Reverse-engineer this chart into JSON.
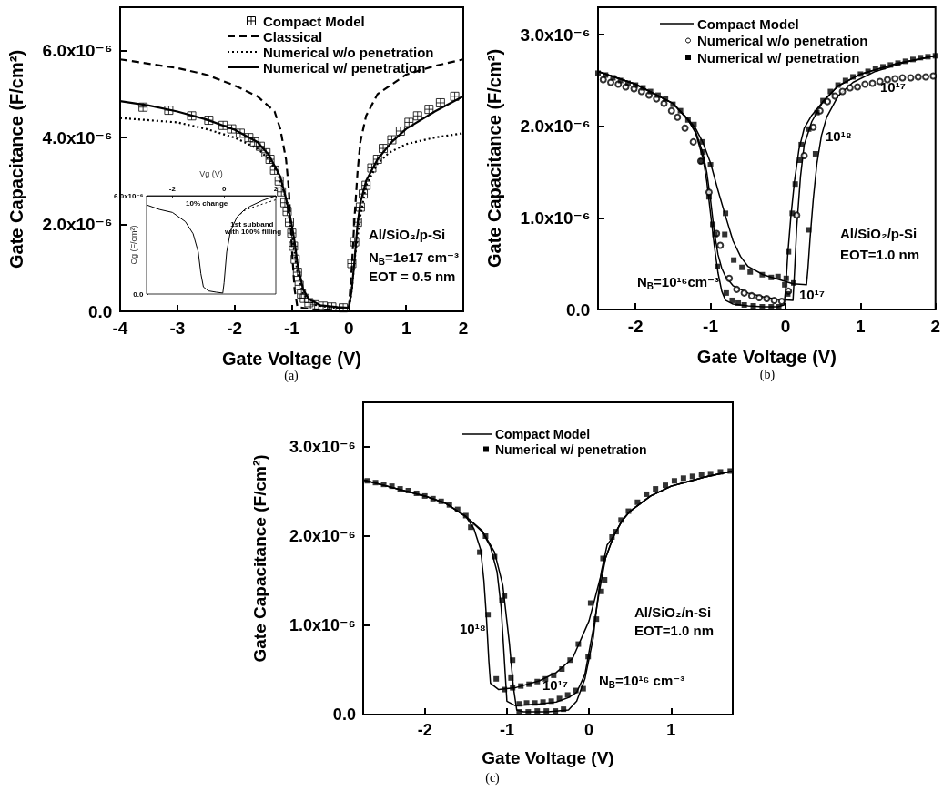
{
  "chart_data": [
    {
      "type": "line",
      "xlabel": "Gate Voltage (V)",
      "ylabel": "Gate Capacitance (F/cm²)",
      "xlim": [
        -4,
        2
      ],
      "xticks": [
        -4,
        -3,
        -2,
        -1,
        0,
        1,
        2
      ],
      "ylim": [
        0,
        7e-06
      ],
      "yticks": [
        {
          "value": 0,
          "label": "0.0"
        },
        {
          "value": 2e-06,
          "label": "2.0x10⁻⁶"
        },
        {
          "value": 4e-06,
          "label": "4.0x10⁻⁶"
        },
        {
          "value": 6e-06,
          "label": "6.0x10⁻⁶"
        }
      ],
      "legend": "top right",
      "annotations": [
        "Al/SiO₂/p-Si",
        "N$_{B}$=1e17 cm⁻³",
        "EOT = 0.5 nm",
        "(a)"
      ],
      "series": [
        {
          "name": "Compact Model",
          "type": "scatter",
          "marker": "cross",
          "color": "#000000",
          "x": [
            -3.6,
            -3.15,
            -2.75,
            -2.45,
            -2.2,
            -2.05,
            -1.9,
            -1.75,
            -1.65,
            -1.55,
            -1.45,
            -1.38,
            -1.3,
            -1.22,
            -1.18,
            -1.12,
            -1.08,
            -1.04,
            -1.0,
            -0.97,
            -0.94,
            -0.9,
            -0.87,
            -0.83,
            -0.78,
            -0.7,
            -0.6,
            -0.45,
            -0.3,
            -0.1,
            0.05,
            0.1,
            0.15,
            0.2,
            0.25,
            0.3,
            0.4,
            0.5,
            0.6,
            0.75,
            0.9,
            1.05,
            1.2,
            1.4,
            1.6,
            1.85
          ],
          "values": [
            4.7e-06,
            4.63e-06,
            4.5e-06,
            4.4e-06,
            4.28e-06,
            4.2e-06,
            4.1e-06,
            4e-06,
            3.9e-06,
            3.8e-06,
            3.65e-06,
            3.5e-06,
            3.25e-06,
            3e-06,
            2.75e-06,
            2.5e-06,
            2.3e-06,
            2.05e-06,
            1.8e-06,
            1.5e-06,
            1.2e-06,
            9e-07,
            6e-07,
            4e-07,
            3e-07,
            2e-07,
            1.5e-07,
            1.2e-07,
            1e-07,
            8e-08,
            1.1e-06,
            1.6e-06,
            2.05e-06,
            2.4e-06,
            2.7e-06,
            2.9e-06,
            3.3e-06,
            3.5e-06,
            3.75e-06,
            3.95e-06,
            4.15e-06,
            4.35e-06,
            4.5e-06,
            4.65e-06,
            4.8e-06,
            4.95e-06
          ]
        },
        {
          "name": "Classical",
          "type": "line",
          "marker": "none",
          "line_style": "dashed",
          "color": "#000000",
          "x": [
            -4,
            -3,
            -2.5,
            -2,
            -1.6,
            -1.3,
            -1.2,
            -1.1,
            -1.05,
            -1.0,
            -0.95,
            -0.9,
            -0.5,
            0,
            0.05,
            0.1,
            0.15,
            0.2,
            0.3,
            0.5,
            1,
            1.5,
            2
          ],
          "values": [
            5.8e-06,
            5.6e-06,
            5.45e-06,
            5.2e-06,
            4.95e-06,
            4.6e-06,
            4.2e-06,
            3.5e-06,
            2.8e-06,
            1.5e-06,
            5e-07,
            1e-07,
            2e-08,
            1e-07,
            1e-06,
            2.2e-06,
            3.2e-06,
            3.9e-06,
            4.5e-06,
            5e-06,
            5.45e-06,
            5.65e-06,
            5.8e-06
          ]
        },
        {
          "name": "Numerical w/o penetration",
          "type": "line",
          "marker": "none",
          "line_style": "dotted",
          "color": "#000000",
          "x": [
            -4,
            -3,
            -2.5,
            -2,
            -1.6,
            -1.4,
            -1.25,
            -1.1,
            -1.0,
            -0.9,
            -0.8,
            -0.6,
            -0.3,
            0,
            0.05,
            0.1,
            0.2,
            0.3,
            0.5,
            0.7,
            1,
            1.5,
            2
          ],
          "values": [
            4.45e-06,
            4.35e-06,
            4.2e-06,
            4e-06,
            3.75e-06,
            3.5e-06,
            3.2e-06,
            2.6e-06,
            1.8e-06,
            9e-07,
            4e-07,
            1.5e-07,
            8e-08,
            6e-08,
            5e-07,
            1.2e-06,
            2.2e-06,
            2.9e-06,
            3.4e-06,
            3.65e-06,
            3.85e-06,
            4e-06,
            4.1e-06
          ]
        },
        {
          "name": "Numerical w/ penetration",
          "type": "line",
          "marker": "none",
          "line_style": "solid",
          "color": "#000000",
          "x": [
            -4,
            -3.5,
            -3,
            -2.5,
            -2,
            -1.6,
            -1.4,
            -1.2,
            -1.1,
            -1.0,
            -0.95,
            -0.9,
            -0.8,
            -0.7,
            -0.5,
            -0.2,
            0,
            0.05,
            0.1,
            0.15,
            0.2,
            0.3,
            0.5,
            0.75,
            1,
            1.5,
            2
          ],
          "values": [
            4.84e-06,
            4.74e-06,
            4.6e-06,
            4.42e-06,
            4.18e-06,
            3.9e-06,
            3.6e-06,
            3.1e-06,
            2.6e-06,
            2e-06,
            1.6e-06,
            1.1e-06,
            5e-07,
            2.8e-07,
            1.4e-07,
            1e-07,
            8e-08,
            5e-07,
            1.2e-06,
            2e-06,
            2.5e-06,
            3e-06,
            3.5e-06,
            3.9e-06,
            4.2e-06,
            4.6e-06,
            4.95e-06
          ]
        }
      ]
    },
    {
      "type": "line",
      "xlabel": "Vg (V)",
      "ylabel": "Cg (F/cm²)",
      "xlim": [
        -3,
        2
      ],
      "xticks": [
        -2,
        0,
        2
      ],
      "ylim": [
        0,
        6e-06
      ],
      "yticks": [
        {
          "value": 0,
          "label": "0.0"
        },
        {
          "value": 6e-06,
          "label": "6.0x10⁻⁶"
        }
      ],
      "annotations": [
        "10% change",
        "1st subband with 100% filling"
      ],
      "series": [
        {
          "type": "line",
          "marker": "none",
          "line_style": "solid",
          "color": "#000000",
          "x": [
            -3,
            -2.5,
            -2,
            -1.5,
            -1.2,
            -1.0,
            -0.9,
            -0.8,
            -0.6,
            -0.3,
            -0.05,
            0,
            0.1,
            0.25,
            0.5,
            0.8,
            1.0,
            1.5,
            2
          ],
          "values": [
            5.44e-06,
            5.16e-06,
            4.98e-06,
            4.42e-06,
            3.68e-06,
            2.56e-06,
            1.26e-06,
            4.3e-07,
            1.9e-07,
            1.1e-07,
            6e-08,
            7e-07,
            2.56e-06,
            3.86e-06,
            4.7e-06,
            5.16e-06,
            5.35e-06,
            5.72e-06,
            6e-06
          ]
        },
        {
          "type": "line",
          "marker": "none",
          "line_style": "dotted",
          "color": "#000000",
          "x": [
            0.5,
            0.8,
            1.2,
            1.6,
            2
          ],
          "values": [
            4.7e-06,
            5.1e-06,
            5.35e-06,
            5.55e-06,
            5.75e-06
          ]
        }
      ]
    },
    {
      "type": "line",
      "xlabel": "Gate Voltage (V)",
      "ylabel": "Gate Capacitance (F/cm²)",
      "xlim": [
        -2.5,
        2
      ],
      "xticks": [
        -2,
        -1,
        0,
        1,
        2
      ],
      "ylim": [
        0,
        3.3e-06
      ],
      "yticks": [
        {
          "value": 0,
          "label": "0.0"
        },
        {
          "value": 1e-06,
          "label": "1.0x10⁻⁶"
        },
        {
          "value": 2e-06,
          "label": "2.0x10⁻⁶"
        },
        {
          "value": 3e-06,
          "label": "3.0x10⁻⁶"
        }
      ],
      "legend": "top",
      "annotations": [
        "Al/SiO₂/p-Si",
        "EOT=1.0 nm",
        "N$_{B}$=10¹⁶cm⁻³",
        "10¹⁷",
        "10¹⁷",
        "10¹⁸",
        "(b)"
      ],
      "series": [
        {
          "name": "Compact Model",
          "type": "line",
          "marker": "none",
          "line_style": "solid",
          "color": "#000000",
          "x": [
            -2.5,
            -2,
            -1.5,
            -1.3,
            -1.2,
            -1.1,
            -1.05,
            -1.0,
            -0.95,
            -0.9,
            -0.85,
            -0.8,
            -0.7,
            -0.5,
            -0.3,
            -0.1,
            -0.02,
            0.0,
            0.03,
            0.07,
            0.12,
            0.18,
            0.25,
            0.35,
            0.5,
            0.7,
            1.0,
            1.5,
            2.0
          ],
          "values": [
            2.6e-06,
            2.46e-06,
            2.25e-06,
            2.07e-06,
            1.93e-06,
            1.65e-06,
            1.4e-06,
            1.05e-06,
            7e-07,
            4e-07,
            2e-07,
            1e-07,
            6e-08,
            4e-08,
            3e-08,
            3e-08,
            5e-08,
            2e-07,
            6e-07,
            1e-06,
            1.4e-06,
            1.75e-06,
            1.98e-06,
            2.12e-06,
            2.27e-06,
            2.44e-06,
            2.57e-06,
            2.69e-06,
            2.77e-06
          ]
        },
        {
          "type": "line",
          "marker": "none",
          "line_style": "solid",
          "color": "#000000",
          "x": [
            -2.5,
            -2,
            -1.5,
            -1.3,
            -1.2,
            -1.1,
            -1.05,
            -1.0,
            -0.95,
            -0.9,
            -0.85,
            -0.8,
            -0.7,
            -0.5,
            -0.3,
            -0.1,
            0.1,
            0.12,
            0.15,
            0.2,
            0.25,
            0.35,
            0.5,
            0.7,
            1.0,
            1.5,
            2.0
          ],
          "values": [
            2.6e-06,
            2.46e-06,
            2.25e-06,
            2.07e-06,
            1.95e-06,
            1.7e-06,
            1.5e-06,
            1.2e-06,
            8.5e-07,
            6e-07,
            4.5e-07,
            3.6e-07,
            2.6e-07,
            1.8e-07,
            1.4e-07,
            1.1e-07,
            1e-07,
            4e-07,
            9e-07,
            1.45e-06,
            1.8e-06,
            2.05e-06,
            2.27e-06,
            2.44e-06,
            2.57e-06,
            2.69e-06,
            2.77e-06
          ]
        },
        {
          "type": "line",
          "marker": "none",
          "line_style": "solid",
          "color": "#000000",
          "x": [
            -2.5,
            -2,
            -1.5,
            -1.3,
            -1.2,
            -1.1,
            -1.0,
            -0.9,
            -0.8,
            -0.7,
            -0.6,
            -0.5,
            -0.3,
            -0.1,
            0.1,
            0.28,
            0.3,
            0.33,
            0.37,
            0.42,
            0.48,
            0.55,
            0.7,
            0.9,
            1.2,
            1.6,
            2.0
          ],
          "values": [
            2.6e-06,
            2.46e-06,
            2.25e-06,
            2.08e-06,
            1.98e-06,
            1.82e-06,
            1.6e-06,
            1.3e-06,
            1.02e-06,
            7.5e-07,
            5.8e-07,
            4.7e-07,
            3.8e-07,
            3.3e-07,
            2.8e-07,
            2.7e-07,
            4.5e-07,
            8e-07,
            1.2e-06,
            1.6e-06,
            1.9e-06,
            2.1e-06,
            2.33e-06,
            2.48e-06,
            2.6e-06,
            2.7e-06,
            2.77e-06
          ]
        },
        {
          "name": "Numerical w/o penetration",
          "type": "scatter",
          "marker": "circle",
          "color": "#000000",
          "x": [
            -2.43,
            -2.33,
            -2.23,
            -2.13,
            -2.02,
            -1.92,
            -1.82,
            -1.72,
            -1.62,
            -1.52,
            -1.44,
            -1.34,
            -1.23,
            -1.13,
            -1.02,
            -0.92,
            -0.87,
            -0.75,
            -0.65,
            -0.55,
            -0.45,
            -0.35,
            -0.25,
            -0.15,
            -0.05,
            0.04,
            0.15,
            0.25,
            0.37,
            0.46,
            0.56,
            0.66,
            0.76,
            0.86,
            0.96,
            1.06,
            1.16,
            1.26,
            1.36,
            1.46,
            1.56,
            1.67,
            1.77,
            1.87,
            1.97
          ],
          "values": [
            2.51e-06,
            2.48e-06,
            2.46e-06,
            2.43e-06,
            2.41e-06,
            2.38e-06,
            2.34e-06,
            2.3e-06,
            2.25e-06,
            2.17e-06,
            2.1e-06,
            1.98e-06,
            1.83e-06,
            1.62e-06,
            1.28e-06,
            8.3e-07,
            7e-07,
            3.4e-07,
            2.2e-07,
            1.8e-07,
            1.5e-07,
            1.3e-07,
            1.2e-07,
            1e-07,
            9e-08,
            2e-07,
            1.03e-06,
            1.68e-06,
            1.99e-06,
            2.17e-06,
            2.27e-06,
            2.33e-06,
            2.38e-06,
            2.42e-06,
            2.43e-06,
            2.46e-06,
            2.47e-06,
            2.49e-06,
            2.51e-06,
            2.52e-06,
            2.53e-06,
            2.53e-06,
            2.54e-06,
            2.54e-06,
            2.55e-06
          ]
        },
        {
          "name": "Numerical w/ penetration",
          "type": "scatter",
          "marker": "square",
          "color": "#000000",
          "x": [
            -2.5,
            -2.4,
            -2.3,
            -2.2,
            -2.1,
            -2.0,
            -1.9,
            -1.8,
            -1.7,
            -1.6,
            -1.5,
            -1.4,
            -1.3,
            -1.22,
            -1.11,
            -1.1,
            -1.12,
            -1.02,
            -0.97,
            -0.94,
            -0.91,
            -0.79,
            -1.0,
            -0.8,
            -0.81,
            -0.69,
            -0.58,
            -0.47,
            -0.31,
            -0.19,
            -0.1,
            0.01,
            0.11,
            0.31,
            0.4,
            -0.71,
            -0.63,
            -0.55,
            -0.43,
            -0.31,
            -0.19,
            -0.09,
            -0.01,
            0.03,
            0.09,
            0.04,
            0.13,
            0.19,
            0.21,
            0.31,
            0.42,
            0.5,
            0.6,
            0.7,
            0.8,
            0.9,
            1.0,
            1.1,
            1.2,
            1.3,
            1.4,
            1.5,
            1.6,
            1.7,
            1.8,
            1.9,
            2.0
          ],
          "values": [
            2.58e-06,
            2.56e-06,
            2.53e-06,
            2.5e-06,
            2.47e-06,
            2.45e-06,
            2.42e-06,
            2.38e-06,
            2.34e-06,
            2.3e-06,
            2.24e-06,
            2.17e-06,
            2.07e-06,
            2.02e-06,
            1.83e-06,
            1.72e-06,
            1.62e-06,
            1.23e-06,
            9.3e-07,
            8.2e-07,
            4.7e-07,
            1.8e-07,
            1.58e-06,
            1.05e-06,
            8.2e-07,
            5.4e-07,
            4.6e-07,
            4.1e-07,
            3.8e-07,
            3.5e-07,
            3.6e-07,
            3.4e-07,
            2.9e-07,
            8.7e-07,
            1.7e-06,
            1e-07,
            7e-08,
            5e-08,
            4e-08,
            3e-08,
            3e-08,
            3e-08,
            2.7e-07,
            1.7e-07,
            1.05e-06,
            6.3e-07,
            1.37e-06,
            1.63e-06,
            1.8e-06,
            1.97e-06,
            2.15e-06,
            2.28e-06,
            2.38e-06,
            2.45e-06,
            2.5e-06,
            2.54e-06,
            2.57e-06,
            2.6e-06,
            2.63e-06,
            2.65e-06,
            2.67e-06,
            2.69e-06,
            2.71e-06,
            2.73e-06,
            2.75e-06,
            2.76e-06,
            2.77e-06
          ]
        }
      ]
    },
    {
      "type": "line",
      "xlabel": "Gate Voltage (V)",
      "ylabel": "Gate Capacitance (F/cm²)",
      "xlim": [
        -2.75,
        1.75
      ],
      "xticks": [
        -2,
        -1,
        0,
        1
      ],
      "ylim": [
        0,
        3.5e-06
      ],
      "yticks": [
        {
          "value": 0,
          "label": "0.0"
        },
        {
          "value": 1e-06,
          "label": "1.0x10⁻⁶"
        },
        {
          "value": 2e-06,
          "label": "2.0x10⁻⁶"
        },
        {
          "value": 3e-06,
          "label": "3.0x10⁻⁶"
        }
      ],
      "legend": "top",
      "annotations": [
        "10¹⁸",
        "10¹⁷",
        "N$_{B}$=10¹⁶ cm⁻³",
        "Al/SiO₂/n-Si",
        "EOT=1.0 nm",
        "(c)"
      ],
      "series": [
        {
          "name": "Compact Model",
          "type": "line",
          "marker": "none",
          "line_style": "solid",
          "color": "#000000",
          "x": [
            -2.75,
            -2.5,
            -2,
            -1.75,
            -1.5,
            -1.4,
            -1.32,
            -1.28,
            -1.25,
            -1.22,
            -1.2,
            -1.1,
            -0.9,
            -0.6,
            -0.4,
            -0.2,
            0,
            0.1,
            0.2,
            0.3,
            0.4,
            0.5,
            0.75,
            1,
            1.4,
            1.75
          ],
          "values": [
            2.63e-06,
            2.57e-06,
            2.45e-06,
            2.37e-06,
            2.22e-06,
            2.08e-06,
            1.85e-06,
            1.5e-06,
            1.1e-06,
            6e-07,
            3.5e-07,
            2.8e-07,
            3e-07,
            3.8e-07,
            4.7e-07,
            6.3e-07,
            1.05e-06,
            1.4e-06,
            1.75e-06,
            2e-06,
            2.17e-06,
            2.28e-06,
            2.45e-06,
            2.56e-06,
            2.66e-06,
            2.73e-06
          ]
        },
        {
          "type": "line",
          "marker": "none",
          "line_style": "solid",
          "color": "#000000",
          "x": [
            -2.75,
            -2.5,
            -2,
            -1.75,
            -1.5,
            -1.3,
            -1.2,
            -1.12,
            -1.07,
            -1.03,
            -1.0,
            -0.9,
            -0.6,
            -0.4,
            -0.25,
            -0.15,
            -0.05,
            0.05,
            0.12,
            0.2,
            0.3,
            0.4,
            0.5,
            0.75,
            1,
            1.4,
            1.75
          ],
          "values": [
            2.63e-06,
            2.57e-06,
            2.45e-06,
            2.37e-06,
            2.22e-06,
            2.05e-06,
            1.88e-06,
            1.6e-06,
            1.2e-06,
            6e-07,
            1.5e-07,
            1e-07,
            1.2e-07,
            1.4e-07,
            1.9e-07,
            2.5e-07,
            4.5e-07,
            9.5e-07,
            1.35e-06,
            1.75e-06,
            2e-06,
            2.17e-06,
            2.28e-06,
            2.45e-06,
            2.56e-06,
            2.66e-06,
            2.73e-06
          ]
        },
        {
          "type": "line",
          "marker": "none",
          "line_style": "solid",
          "color": "#000000",
          "x": [
            -2.75,
            -2.5,
            -2,
            -1.75,
            -1.5,
            -1.3,
            -1.15,
            -1.05,
            -0.97,
            -0.92,
            -0.88,
            -0.8,
            -0.5,
            -0.25,
            -0.15,
            -0.05,
            0.05,
            0.1,
            0.15,
            0.22,
            0.3,
            0.4,
            0.5,
            0.75,
            1,
            1.4,
            1.75
          ],
          "values": [
            2.63e-06,
            2.57e-06,
            2.45e-06,
            2.37e-06,
            2.22e-06,
            2.06e-06,
            1.82e-06,
            1.45e-06,
            8e-07,
            3e-07,
            5e-08,
            3e-08,
            3e-08,
            5e-08,
            1.5e-07,
            4e-07,
            8.5e-07,
            1.25e-06,
            1.6e-06,
            1.9e-06,
            2e-06,
            2.17e-06,
            2.28e-06,
            2.45e-06,
            2.56e-06,
            2.66e-06,
            2.73e-06
          ]
        },
        {
          "name": "Numerical w/ penetration",
          "type": "scatter",
          "marker": "square",
          "color": "#000000",
          "x": [
            -2.7,
            -2.6,
            -2.5,
            -2.4,
            -2.3,
            -2.2,
            -2.1,
            -2.0,
            -1.9,
            -1.8,
            -1.7,
            -1.6,
            -1.5,
            -1.44,
            -1.33,
            -1.23,
            -1.13,
            -1.03,
            -0.93,
            -0.83,
            -0.73,
            -0.63,
            -0.53,
            -0.43,
            -0.33,
            -0.23,
            -0.13,
            0.02,
            0.17,
            -1.26,
            -1.15,
            -1.06,
            -0.95,
            -0.85,
            -0.76,
            -0.66,
            -0.56,
            -0.46,
            -0.36,
            -0.26,
            -0.16,
            -0.01,
            0.09,
            0.19,
            -1.03,
            -0.93,
            -0.85,
            -0.74,
            -0.63,
            -0.52,
            -0.41,
            -0.31,
            -0.07,
            0.15,
            0.28,
            0.33,
            0.39,
            0.48,
            0.59,
            0.7,
            0.81,
            0.93,
            1.04,
            1.15,
            1.26,
            1.37,
            1.48,
            1.6,
            1.72
          ],
          "values": [
            2.62e-06,
            2.6e-06,
            2.58e-06,
            2.56e-06,
            2.53e-06,
            2.51e-06,
            2.48e-06,
            2.45e-06,
            2.42e-06,
            2.39e-06,
            2.35e-06,
            2.3e-06,
            2.23e-06,
            2.1e-06,
            1.82e-06,
            1.12e-06,
            4e-07,
            2.8e-07,
            3e-07,
            3.2e-07,
            3.4e-07,
            3.7e-07,
            4e-07,
            4.4e-07,
            5.1e-07,
            6.1e-07,
            7.9e-07,
            1.25e-06,
            1.75e-06,
            2e-06,
            1.77e-06,
            1.28e-06,
            4.1e-07,
            1.2e-07,
            1.3e-07,
            1.3e-07,
            1.4e-07,
            1.5e-07,
            1.8e-07,
            2.2e-07,
            2.7e-07,
            6.5e-07,
            1.07e-06,
            1.51e-06,
            1.33e-06,
            6.1e-07,
            3e-08,
            3e-08,
            4e-08,
            4e-08,
            4e-08,
            6e-08,
            2.9e-07,
            1.38e-06,
            1.99e-06,
            2.05e-06,
            2.18e-06,
            2.28e-06,
            2.38e-06,
            2.47e-06,
            2.53e-06,
            2.57e-06,
            2.62e-06,
            2.65e-06,
            2.67e-06,
            2.69e-06,
            2.7e-06,
            2.72e-06,
            2.73e-06
          ]
        }
      ]
    }
  ]
}
